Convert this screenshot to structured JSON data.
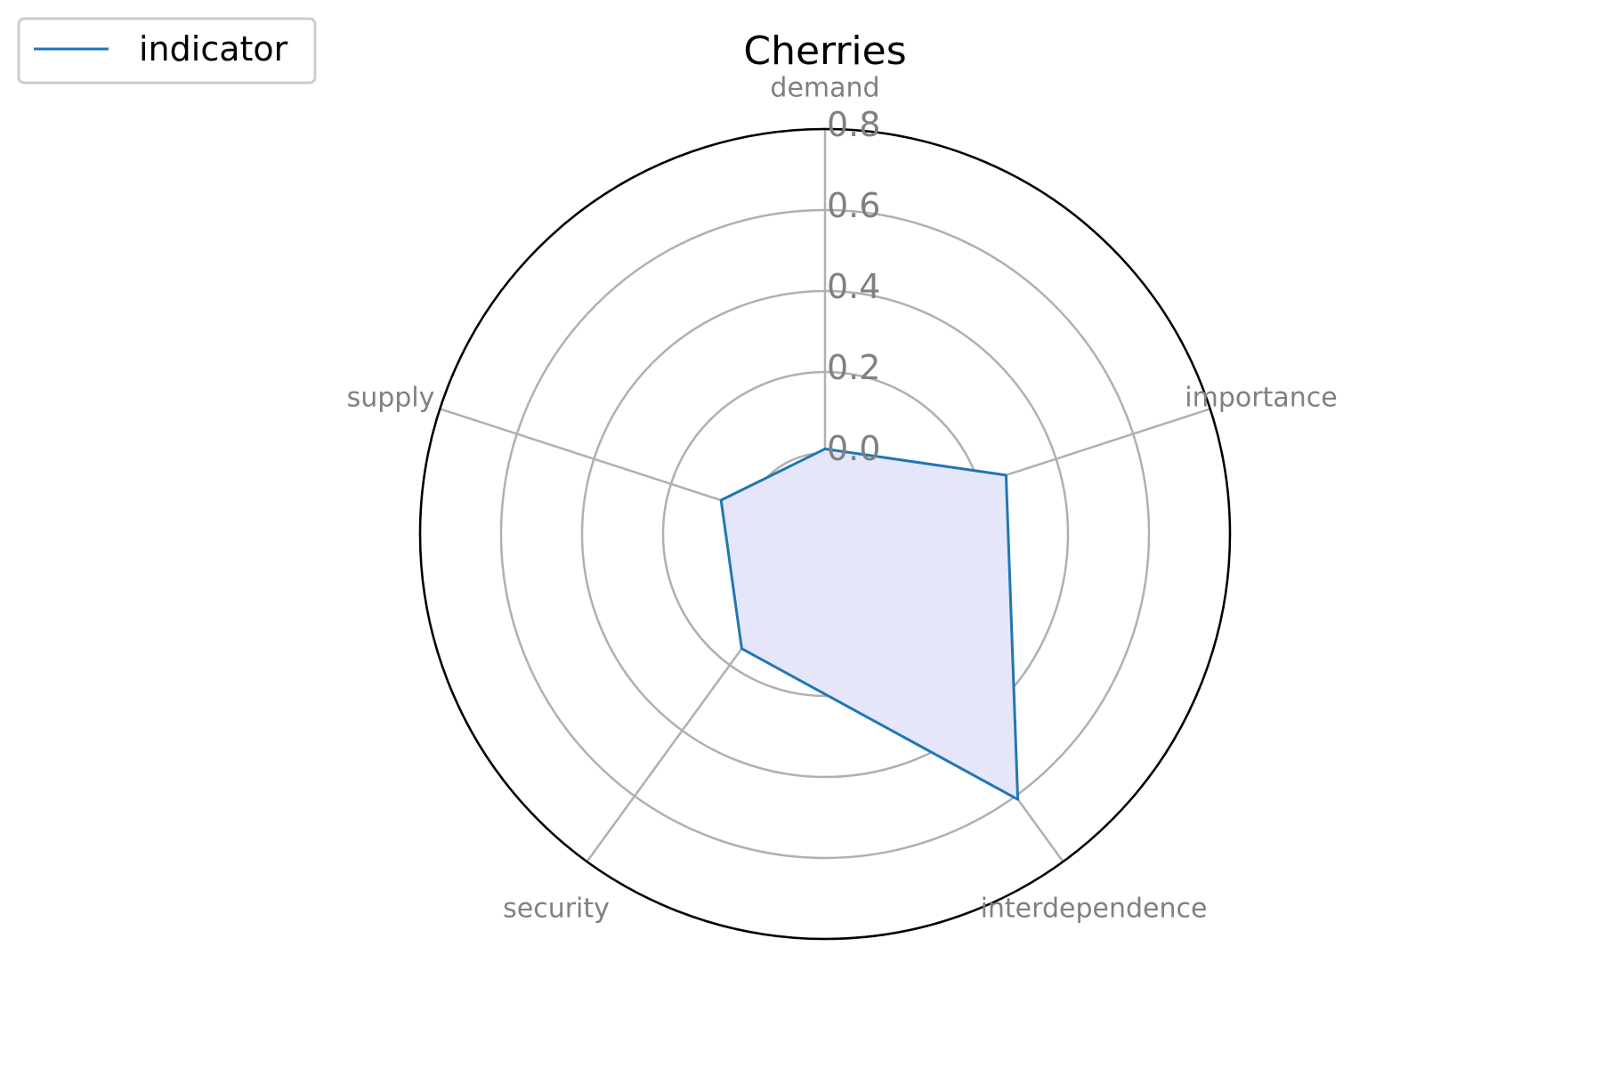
{
  "chart_data": {
    "type": "radar",
    "title": "Cherries",
    "categories": [
      "demand",
      "importance",
      "interdependence",
      "security",
      "supply"
    ],
    "series": [
      {
        "name": "indicator",
        "values": [
          0.01,
          0.27,
          0.61,
          0.15,
          0.07
        ]
      }
    ],
    "rticks": [
      "0.0",
      "0.2",
      "0.4",
      "0.6",
      "0.8"
    ],
    "rtick_values": [
      0.0,
      0.2,
      0.4,
      0.6,
      0.8
    ],
    "r_range": [
      -0.2,
      0.8
    ],
    "grid": true,
    "legend_position": "top-left",
    "colors": {
      "line": "#1f77b4",
      "fill": "#e6e6fa",
      "grid": "#b0b0b0",
      "frame": "#000000",
      "label": "#808080"
    }
  }
}
